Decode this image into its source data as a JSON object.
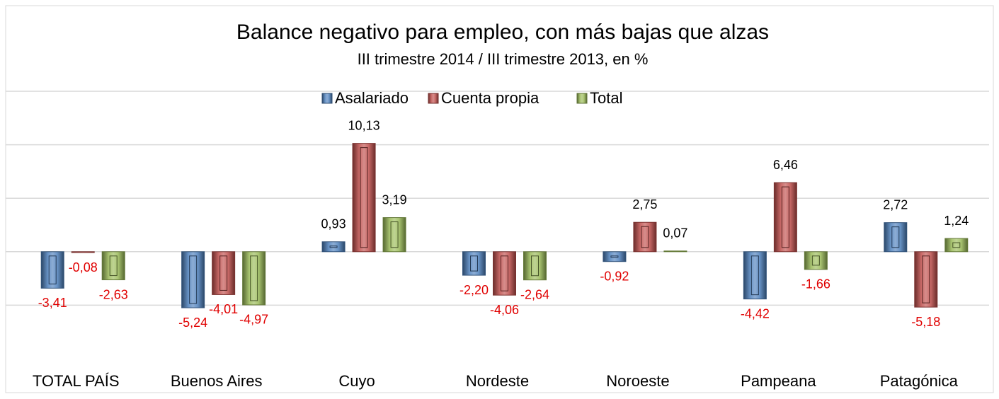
{
  "chart_data": {
    "type": "bar",
    "title": "Balance negativo para empleo, con más bajas que alzas",
    "subtitle": "III trimestre 2014 / III trimestre 2013, en %",
    "categories": [
      "TOTAL PAÍS",
      "Buenos Aires",
      "Cuyo",
      "Nordeste",
      "Noroeste",
      "Pampeana",
      "Patagónica"
    ],
    "series": [
      {
        "name": "Asalariado",
        "color": "#4f81bd",
        "values": [
          -3.41,
          -5.24,
          0.93,
          -2.2,
          -0.92,
          -4.42,
          2.72
        ],
        "value_labels": [
          "-3,41",
          "-5,24",
          "0,93",
          "-2,20",
          "-0,92",
          "-4,42",
          "2,72"
        ]
      },
      {
        "name": "Cuenta propia",
        "color": "#c0504d",
        "values": [
          -0.08,
          -4.01,
          10.13,
          -4.06,
          2.75,
          6.46,
          -5.18
        ],
        "value_labels": [
          "-0,08",
          "-4,01",
          "10,13",
          "-4,06",
          "2,75",
          "6,46",
          "-5,18"
        ]
      },
      {
        "name": "Total",
        "color": "#9bbb59",
        "values": [
          -2.63,
          -4.97,
          3.19,
          -2.64,
          0.07,
          -1.66,
          1.24
        ],
        "value_labels": [
          "-2,63",
          "-4,97",
          "3,19",
          "-2,64",
          "0,07",
          "-1,66",
          "1,24"
        ]
      }
    ],
    "ylim": [
      -10,
      15
    ],
    "yticks": [
      -5,
      0,
      5,
      10,
      15
    ],
    "grid": true,
    "legend": "top"
  }
}
